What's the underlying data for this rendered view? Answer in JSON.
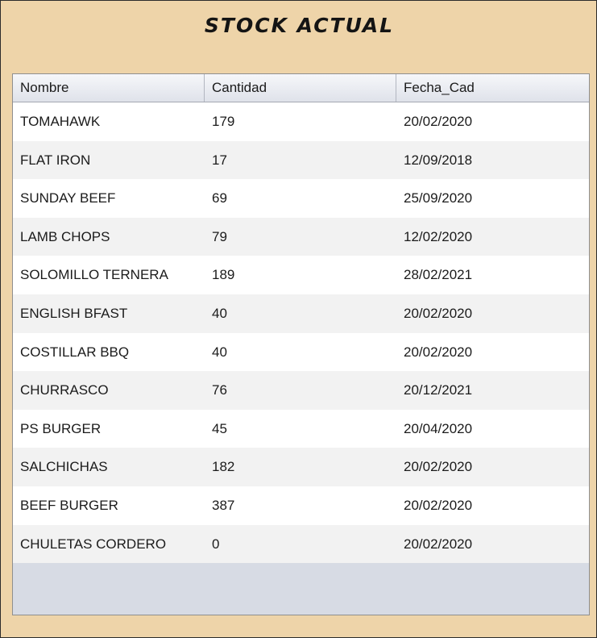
{
  "window": {
    "title": "STOCK ACTUAL"
  },
  "colors": {
    "panel_background": "#eed4a9",
    "table_empty_area": "#d7dbe4",
    "row_even": "#f2f2f2",
    "row_odd": "#ffffff"
  },
  "table": {
    "columns": [
      "Nombre",
      "Cantidad",
      "Fecha_Cad"
    ],
    "rows": [
      {
        "nombre": "TOMAHAWK",
        "cantidad": "179",
        "fecha_cad": "20/02/2020"
      },
      {
        "nombre": "FLAT IRON",
        "cantidad": "17",
        "fecha_cad": "12/09/2018"
      },
      {
        "nombre": "SUNDAY BEEF",
        "cantidad": "69",
        "fecha_cad": "25/09/2020"
      },
      {
        "nombre": "LAMB CHOPS",
        "cantidad": "79",
        "fecha_cad": "12/02/2020"
      },
      {
        "nombre": "SOLOMILLO TERNERA",
        "cantidad": "189",
        "fecha_cad": "28/02/2021"
      },
      {
        "nombre": "ENGLISH BFAST",
        "cantidad": "40",
        "fecha_cad": "20/02/2020"
      },
      {
        "nombre": "COSTILLAR BBQ",
        "cantidad": "40",
        "fecha_cad": "20/02/2020"
      },
      {
        "nombre": "CHURRASCO",
        "cantidad": "76",
        "fecha_cad": "20/12/2021"
      },
      {
        "nombre": "PS BURGER",
        "cantidad": "45",
        "fecha_cad": "20/04/2020"
      },
      {
        "nombre": "SALCHICHAS",
        "cantidad": "182",
        "fecha_cad": "20/02/2020"
      },
      {
        "nombre": "BEEF BURGER",
        "cantidad": "387",
        "fecha_cad": "20/02/2020"
      },
      {
        "nombre": "CHULETAS CORDERO",
        "cantidad": "0",
        "fecha_cad": "20/02/2020"
      }
    ]
  }
}
